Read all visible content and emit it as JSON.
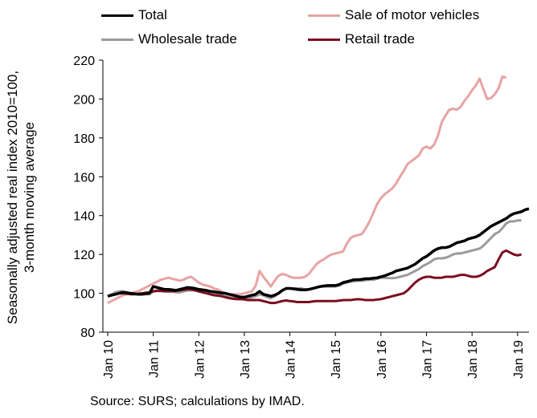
{
  "chart_data": {
    "type": "line",
    "ylabel": "Seasonally adjusted real index 2010=100,\n3-month moving average",
    "ylabel_lines": [
      "Seasonally adjusted real index 2010=100,",
      "3-month moving average"
    ],
    "ylim": [
      80,
      220
    ],
    "yticks": [
      80,
      100,
      120,
      140,
      160,
      180,
      200,
      220
    ],
    "x_start": "2010-01",
    "x_end": "2019-04",
    "xticks": [
      "Jan 10",
      "Jan 11",
      "Jan 12",
      "Jan 13",
      "Jan 14",
      "Jan 15",
      "Jan 16",
      "Jan 17",
      "Jan 18",
      "Jan 19"
    ],
    "grid": false,
    "legend_position": "top",
    "series": [
      {
        "name": "Total",
        "color": "#000000",
        "values": [
          98.5,
          99.0,
          99.5,
          100.0,
          100.5,
          100.3,
          100.0,
          99.8,
          99.5,
          99.5,
          99.8,
          100.0,
          103.5,
          103.0,
          102.5,
          102.0,
          102.0,
          101.8,
          101.5,
          102.0,
          102.5,
          103.0,
          102.8,
          102.5,
          102.0,
          101.8,
          101.5,
          101.0,
          100.8,
          100.5,
          100.2,
          100.0,
          99.5,
          99.0,
          98.5,
          98.0,
          98.0,
          98.5,
          99.0,
          99.5,
          101.0,
          99.5,
          99.0,
          98.5,
          99.0,
          100.0,
          101.5,
          102.5,
          102.5,
          102.3,
          102.0,
          101.8,
          101.8,
          102.0,
          102.5,
          103.0,
          103.5,
          103.8,
          104.0,
          104.0,
          104.0,
          104.5,
          105.5,
          106.0,
          106.5,
          107.0,
          107.0,
          107.2,
          107.5,
          107.5,
          107.8,
          108.0,
          108.5,
          109.0,
          109.8,
          110.5,
          111.5,
          112.0,
          112.5,
          113.0,
          114.0,
          115.0,
          116.5,
          118.0,
          119.0,
          120.5,
          122.0,
          123.0,
          123.5,
          123.5,
          124.0,
          125.0,
          126.0,
          126.5,
          127.0,
          128.0,
          128.5,
          129.0,
          130.0,
          131.5,
          133.0,
          134.5,
          135.5,
          136.5,
          137.5,
          138.5,
          140.0,
          141.0,
          141.5,
          142.0,
          143.0,
          143.5
        ]
      },
      {
        "name": "Sale of motor vehicles",
        "color": "#e8a3a3",
        "values": [
          95.0,
          96.0,
          97.0,
          98.0,
          99.0,
          99.5,
          100.0,
          100.5,
          101.0,
          102.0,
          103.0,
          104.0,
          105.0,
          106.0,
          107.0,
          107.5,
          108.0,
          107.5,
          107.0,
          106.5,
          107.0,
          108.0,
          108.5,
          107.0,
          105.5,
          104.5,
          104.0,
          103.5,
          102.5,
          102.0,
          101.0,
          100.0,
          99.5,
          99.5,
          99.5,
          99.5,
          100.0,
          100.5,
          101.0,
          104.0,
          111.5,
          108.5,
          106.0,
          103.5,
          106.5,
          109.0,
          110.0,
          109.5,
          108.5,
          108.0,
          108.0,
          108.0,
          108.5,
          110.0,
          112.5,
          115.0,
          116.5,
          117.5,
          119.0,
          120.0,
          120.5,
          121.0,
          121.5,
          125.5,
          128.5,
          129.5,
          130.0,
          130.5,
          133.5,
          137.0,
          141.5,
          146.0,
          149.0,
          151.0,
          152.5,
          154.0,
          156.5,
          160.0,
          163.0,
          166.5,
          168.0,
          169.5,
          171.0,
          174.5,
          175.5,
          174.5,
          176.5,
          181.0,
          188.0,
          191.5,
          194.5,
          195.0,
          194.5,
          196.0,
          199.0,
          201.5,
          204.5,
          207.0,
          210.5,
          205.0,
          200.0,
          200.5,
          202.5,
          205.5,
          211.5,
          211.0
        ]
      },
      {
        "name": "Wholesale trade",
        "color": "#9b9b9b",
        "values": [
          98.5,
          99.5,
          100.5,
          101.0,
          101.0,
          100.5,
          100.0,
          99.5,
          99.5,
          99.5,
          99.5,
          99.5,
          101.0,
          101.5,
          101.5,
          101.5,
          101.3,
          101.0,
          100.5,
          100.5,
          101.0,
          101.5,
          101.5,
          101.5,
          101.0,
          101.0,
          101.0,
          100.5,
          100.0,
          99.5,
          99.0,
          98.5,
          98.0,
          97.5,
          97.5,
          97.5,
          97.5,
          97.5,
          98.0,
          98.5,
          99.5,
          99.0,
          98.0,
          97.5,
          98.5,
          100.0,
          101.5,
          102.5,
          102.5,
          102.5,
          102.5,
          102.5,
          102.0,
          102.0,
          102.5,
          103.0,
          103.5,
          103.5,
          103.5,
          103.5,
          103.5,
          104.0,
          105.0,
          105.5,
          106.0,
          106.3,
          106.5,
          106.5,
          106.8,
          107.0,
          107.0,
          107.5,
          108.0,
          108.0,
          107.8,
          107.8,
          108.0,
          108.5,
          109.0,
          109.5,
          110.5,
          111.5,
          112.5,
          114.0,
          115.0,
          116.0,
          117.5,
          118.0,
          118.0,
          118.3,
          119.0,
          120.0,
          120.5,
          120.5,
          121.0,
          121.5,
          122.0,
          122.5,
          123.0,
          124.5,
          126.5,
          128.5,
          130.5,
          131.5,
          133.5,
          136.0,
          137.0,
          137.0,
          137.5,
          137.5
        ]
      },
      {
        "name": "Retail trade",
        "color": "#7b0d1e",
        "values": [
          98.5,
          99.0,
          99.5,
          100.0,
          100.0,
          99.8,
          99.5,
          99.5,
          99.8,
          100.0,
          100.3,
          100.5,
          101.0,
          101.2,
          101.2,
          101.0,
          101.0,
          101.0,
          101.3,
          101.5,
          101.8,
          102.0,
          102.0,
          101.5,
          101.0,
          100.5,
          100.0,
          99.5,
          99.0,
          98.8,
          98.5,
          98.0,
          97.5,
          97.2,
          97.0,
          97.0,
          96.8,
          96.5,
          96.5,
          96.5,
          96.5,
          96.0,
          95.5,
          95.0,
          95.0,
          95.5,
          96.0,
          96.3,
          96.0,
          95.8,
          95.5,
          95.5,
          95.5,
          95.5,
          95.8,
          96.0,
          96.0,
          96.0,
          96.0,
          96.0,
          96.0,
          96.2,
          96.5,
          96.5,
          96.5,
          96.8,
          97.0,
          96.8,
          96.5,
          96.5,
          96.5,
          96.8,
          97.0,
          97.5,
          98.0,
          98.5,
          99.0,
          99.5,
          100.0,
          101.5,
          103.5,
          105.5,
          107.0,
          108.0,
          108.5,
          108.5,
          108.0,
          108.0,
          108.0,
          108.5,
          108.5,
          108.5,
          109.0,
          109.5,
          109.5,
          109.0,
          108.5,
          108.5,
          109.0,
          110.0,
          111.5,
          112.5,
          113.5,
          117.5,
          121.0,
          122.0,
          121.0,
          120.0,
          119.5,
          120.0
        ]
      }
    ]
  },
  "source": "Source: SURS; calculations by IMAD."
}
